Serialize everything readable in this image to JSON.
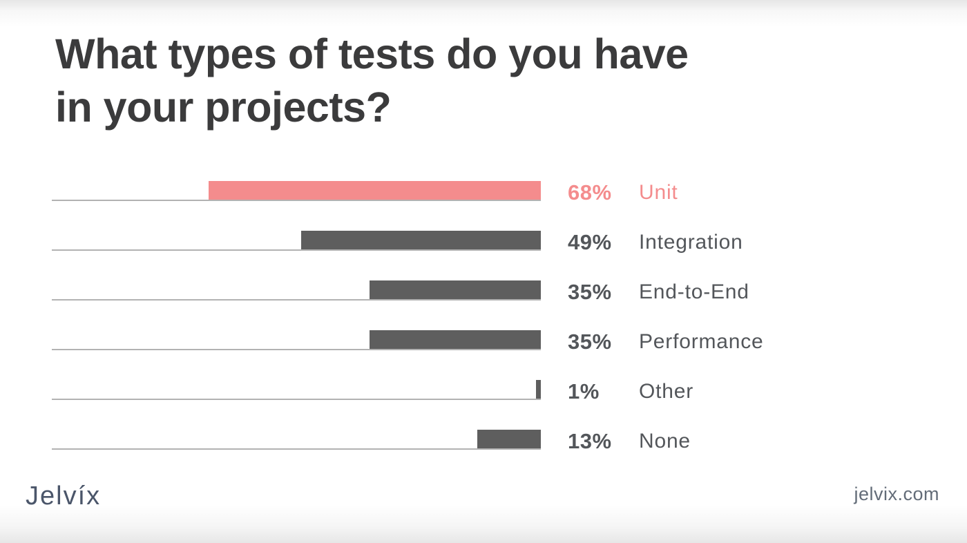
{
  "title": "What types of tests do you have in your projects?",
  "title_lines": [
    "What types of tests do you have",
    "in your projects?"
  ],
  "chart_data": {
    "type": "bar",
    "orientation": "horizontal",
    "categories": [
      "Unit",
      "Integration",
      "End-to-End",
      "Performance",
      "Other",
      "None"
    ],
    "values": [
      68,
      49,
      35,
      35,
      1,
      13
    ],
    "value_labels": [
      "68%",
      "49%",
      "35%",
      "35%",
      "1%",
      "13%"
    ],
    "title": "What types of tests do you have in your projects?",
    "xlabel": "",
    "ylabel": "",
    "xlim": [
      0,
      100
    ],
    "grid": false,
    "legend": "none",
    "bars_right_aligned": true,
    "highlight_index": 0,
    "colors": {
      "highlight_bar": "#f48c8d",
      "default_bar": "#5e5e5e",
      "highlight_text": "#f48c8d",
      "default_text": "#53565a",
      "track_line": "#b2b2b2",
      "title_text": "#3b3b3c"
    }
  },
  "footer": {
    "logo_text": "Jelvíx",
    "website": "jelvix.com"
  }
}
